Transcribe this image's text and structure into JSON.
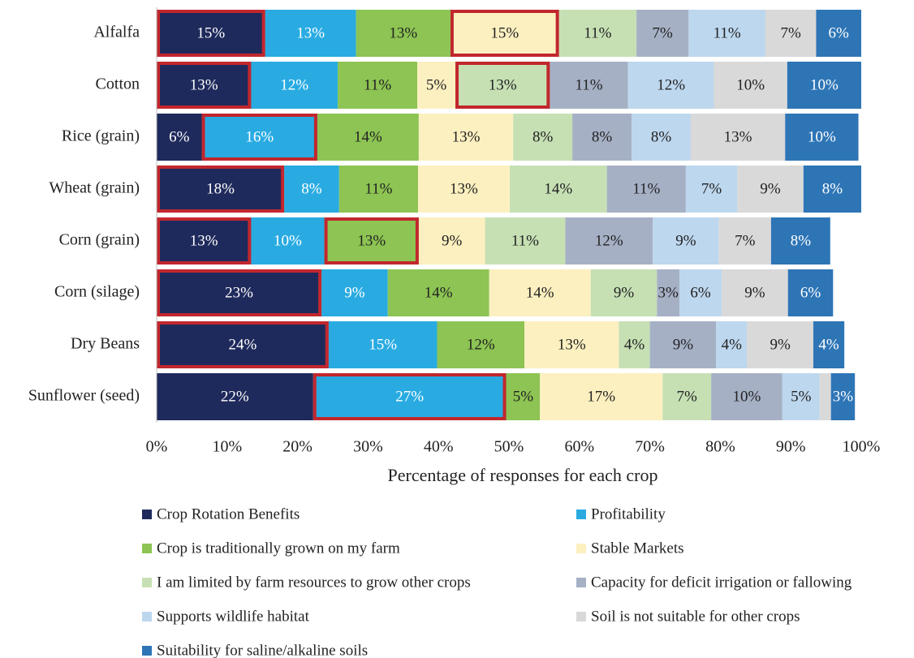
{
  "chart_data": {
    "type": "stacked_bar_horizontal",
    "x_label": "Percentage of responses for each crop",
    "categories": [
      "Alfalfa",
      "Cotton",
      "Rice (grain)",
      "Wheat (grain)",
      "Corn (grain)",
      "Corn (silage)",
      "Dry Beans",
      "Sunflower (seed)"
    ],
    "xlim": [
      0,
      100
    ],
    "xticks": [
      {
        "value": 0,
        "label": "0%"
      },
      {
        "value": 10,
        "label": "10%"
      },
      {
        "value": 20,
        "label": "20%"
      },
      {
        "value": 30,
        "label": "30%"
      },
      {
        "value": 40,
        "label": "40%"
      },
      {
        "value": 50,
        "label": "50%"
      },
      {
        "value": 60,
        "label": "60%"
      },
      {
        "value": 70,
        "label": "70%"
      },
      {
        "value": 80,
        "label": "80%"
      },
      {
        "value": 90,
        "label": "90%"
      },
      {
        "value": 100,
        "label": "100%"
      }
    ],
    "highlights": [
      [
        0,
        0
      ],
      [
        0,
        3
      ],
      [
        1,
        0
      ],
      [
        1,
        4
      ],
      [
        2,
        1
      ],
      [
        3,
        0
      ],
      [
        4,
        0
      ],
      [
        4,
        2
      ],
      [
        5,
        0
      ],
      [
        6,
        0
      ],
      [
        7,
        1
      ]
    ],
    "highlight_color": "#c1272d",
    "series": [
      {
        "name": "Crop Rotation Benefits",
        "color": "#1f2a5c",
        "label_color": "#ffffff",
        "values": [
          15.4,
          13.4,
          6.4,
          18.1,
          13.4,
          23.4,
          24.4,
          22.2
        ],
        "value_labels": [
          "15%",
          "13%",
          "6%",
          "18%",
          "13%",
          "23%",
          "24%",
          "22%"
        ]
      },
      {
        "name": "Profitability",
        "color": "#29abe2",
        "label_color": "#ffffff",
        "values": [
          12.9,
          12.3,
          16.4,
          7.8,
          10.4,
          9.4,
          15.4,
          27.4
        ],
        "value_labels": [
          "13%",
          "12%",
          "16%",
          "8%",
          "10%",
          "9%",
          "15%",
          "27%"
        ]
      },
      {
        "name": "Crop is traditionally grown on my farm",
        "color": "#8dc453",
        "label_color": "#222222",
        "values": [
          13.4,
          11.3,
          14.4,
          11.2,
          13.4,
          14.4,
          12.4,
          4.8
        ],
        "value_labels": [
          "13%",
          "11%",
          "14%",
          "11%",
          "13%",
          "14%",
          "12%",
          "5%"
        ]
      },
      {
        "name": "Stable Markets",
        "color": "#fdf0c0",
        "label_color": "#222222",
        "values": [
          15.4,
          5.4,
          13.4,
          13.0,
          9.4,
          14.4,
          13.4,
          17.4
        ],
        "value_labels": [
          "15%",
          "5%",
          "13%",
          "13%",
          "9%",
          "14%",
          "13%",
          "17%"
        ]
      },
      {
        "name": "I am limited by farm resources to grow other crops",
        "color": "#c6e0b4",
        "label_color": "#222222",
        "values": [
          11.0,
          13.4,
          8.4,
          13.8,
          11.4,
          9.4,
          4.4,
          6.9
        ],
        "value_labels": [
          "11%",
          "13%",
          "8%",
          "14%",
          "11%",
          "9%",
          "4%",
          "7%"
        ]
      },
      {
        "name": "Capacity for deficit irrigation or fallowing",
        "color": "#a6b0c5",
        "label_color": "#222222",
        "values": [
          7.4,
          11.1,
          8.4,
          11.2,
          12.4,
          3.2,
          9.4,
          10.1
        ],
        "value_labels": [
          "7%",
          "11%",
          "8%",
          "11%",
          "12%",
          "3%",
          "9%",
          "10%"
        ]
      },
      {
        "name": "Supports wildlife habitat",
        "color": "#bdd7ee",
        "label_color": "#222222",
        "values": [
          10.9,
          12.2,
          8.4,
          7.3,
          9.4,
          6.0,
          4.4,
          5.3
        ],
        "value_labels": [
          "11%",
          "12%",
          "8%",
          "7%",
          "9%",
          "6%",
          "4%",
          "5%"
        ]
      },
      {
        "name": "Soil is not suitable for other crops",
        "color": "#d9d9d9",
        "label_color": "#222222",
        "values": [
          7.2,
          10.4,
          13.4,
          9.4,
          7.4,
          9.4,
          9.4,
          1.6
        ],
        "value_labels": [
          "7%",
          "10%",
          "13%",
          "9%",
          "7%",
          "9%",
          "9%",
          null
        ]
      },
      {
        "name": "Suitability for saline/alkaline soils",
        "color": "#2e75b6",
        "label_color": "#ffffff",
        "values": [
          6.4,
          10.5,
          10.4,
          8.2,
          8.4,
          6.4,
          4.4,
          3.4
        ],
        "value_labels": [
          "6%",
          "10%",
          "10%",
          "8%",
          "8%",
          "6%",
          "4%",
          "3%"
        ]
      }
    ]
  }
}
